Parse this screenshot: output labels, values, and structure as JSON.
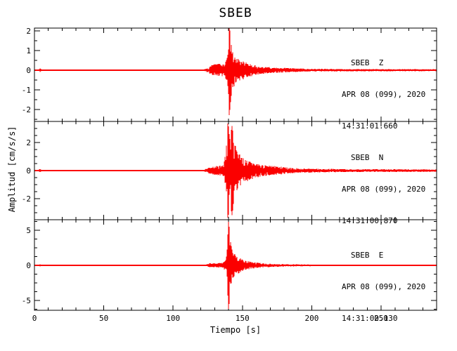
{
  "chart_data": {
    "type": "line",
    "title": "SBEB",
    "xlabel": "Tiempo [s]",
    "ylabel": "Amplitud [cm/s/s]",
    "xlim": [
      0,
      290
    ],
    "x_major_ticks": [
      0,
      50,
      100,
      150,
      200,
      250
    ],
    "x_minor_step": 10,
    "trace_color": "#fb0000",
    "frame_color": "#000000",
    "grid": false,
    "legend_position": "inside-top-right",
    "panels": [
      {
        "station": "SBEB",
        "component": "Z",
        "label_lines": [
          "SBEB  Z",
          "APR 08 (099), 2020",
          "14:31:01.660"
        ],
        "ylim": [
          -2.6,
          2.15
        ],
        "y_major_ticks": [
          2,
          1,
          0,
          -1,
          -2
        ],
        "y_minor_step": 0.5,
        "peak_amplitude": 2.35,
        "peak_time_s": 141,
        "envelope": [
          [
            0,
            0.04
          ],
          [
            3,
            0.04
          ],
          [
            4,
            0.12
          ],
          [
            5,
            0.04
          ],
          [
            122,
            0.04
          ],
          [
            126,
            0.15
          ],
          [
            128,
            0.28
          ],
          [
            133,
            0.32
          ],
          [
            137,
            0.3
          ],
          [
            139,
            0.7
          ],
          [
            140.5,
            2.35
          ],
          [
            141.5,
            1.6
          ],
          [
            143,
            0.95
          ],
          [
            146,
            0.65
          ],
          [
            150,
            0.5
          ],
          [
            154,
            0.35
          ],
          [
            158,
            0.28
          ],
          [
            163,
            0.2
          ],
          [
            170,
            0.15
          ],
          [
            178,
            0.13
          ],
          [
            186,
            0.1
          ],
          [
            200,
            0.07
          ],
          [
            230,
            0.06
          ],
          [
            290,
            0.05
          ]
        ]
      },
      {
        "station": "SBEB",
        "component": "N",
        "label_lines": [
          "SBEB  N",
          "APR 08 (099), 2020",
          "14:31:00.870"
        ],
        "ylim": [
          -3.5,
          3.5
        ],
        "y_major_ticks": [
          2,
          0,
          -2
        ],
        "y_minor_step": 0.5,
        "peak_amplitude": 3.45,
        "peak_time_s": 140,
        "envelope": [
          [
            0,
            0.05
          ],
          [
            3,
            0.05
          ],
          [
            4,
            0.15
          ],
          [
            5,
            0.05
          ],
          [
            122,
            0.05
          ],
          [
            126,
            0.22
          ],
          [
            130,
            0.32
          ],
          [
            136,
            0.4
          ],
          [
            138,
            1.3
          ],
          [
            139.5,
            3.45
          ],
          [
            141,
            2.4
          ],
          [
            142.5,
            3.2
          ],
          [
            144,
            2.1
          ],
          [
            146,
            1.4
          ],
          [
            149,
            1.05
          ],
          [
            153,
            0.8
          ],
          [
            158,
            0.55
          ],
          [
            164,
            0.42
          ],
          [
            170,
            0.35
          ],
          [
            176,
            0.32
          ],
          [
            182,
            0.22
          ],
          [
            190,
            0.17
          ],
          [
            205,
            0.13
          ],
          [
            220,
            0.11
          ],
          [
            290,
            0.09
          ]
        ]
      },
      {
        "station": "SBEB",
        "component": "E",
        "label_lines": [
          "SBEB  E",
          "APR 08 (099), 2020",
          "14:31:00.130"
        ],
        "ylim": [
          -6.4,
          6.5
        ],
        "y_major_ticks": [
          5,
          0,
          -5
        ],
        "y_minor_step": 1.25,
        "peak_amplitude": 6.45,
        "peak_time_s": 140,
        "envelope": [
          [
            0,
            0.07
          ],
          [
            3,
            0.07
          ],
          [
            4,
            0.2
          ],
          [
            5,
            0.07
          ],
          [
            122,
            0.07
          ],
          [
            126,
            0.28
          ],
          [
            132,
            0.33
          ],
          [
            136,
            0.4
          ],
          [
            138.5,
            1.3
          ],
          [
            140,
            6.45
          ],
          [
            141.5,
            3.2
          ],
          [
            143,
            1.9
          ],
          [
            146,
            1.25
          ],
          [
            150,
            0.85
          ],
          [
            155,
            0.55
          ],
          [
            160,
            0.4
          ],
          [
            168,
            0.28
          ],
          [
            176,
            0.2
          ],
          [
            186,
            0.16
          ],
          [
            200,
            0.13
          ],
          [
            240,
            0.11
          ],
          [
            290,
            0.1
          ]
        ]
      }
    ]
  }
}
